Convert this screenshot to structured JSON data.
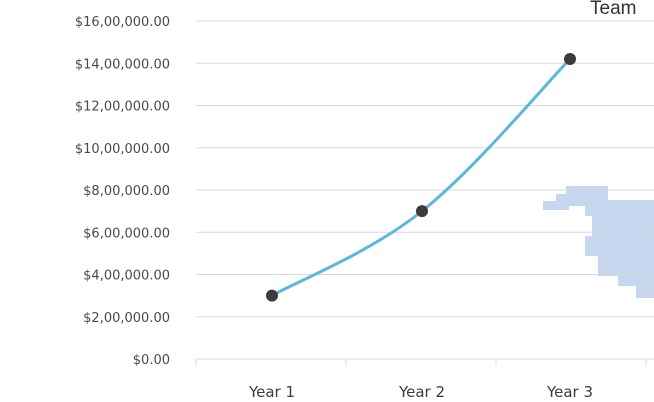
{
  "chart_data": {
    "type": "line",
    "title": "Team",
    "xlabel": "",
    "ylabel": "",
    "categories": [
      "Year 1",
      "Year 2",
      "Year 3"
    ],
    "series": [
      {
        "values": [
          300000,
          700000,
          1420000
        ]
      }
    ],
    "ylim": [
      0,
      1600000
    ],
    "y_ticks": [
      0,
      200000,
      400000,
      600000,
      800000,
      1000000,
      1200000,
      1400000,
      1600000
    ],
    "y_tick_labels": [
      "$0.00",
      "$2,00,000.00",
      "$4,00,000.00",
      "$6,00,000.00",
      "$8,00,000.00",
      "$10,00,000.00",
      "$12,00,000.00",
      "$14,00,000.00",
      "$16,00,000.00"
    ],
    "grid": true,
    "legend": "none",
    "colors": {
      "line": "#5bb8dc",
      "marker": "#3b3b3b",
      "gridline": "#d9d9d9",
      "decoration": "#c5d7ef"
    }
  }
}
